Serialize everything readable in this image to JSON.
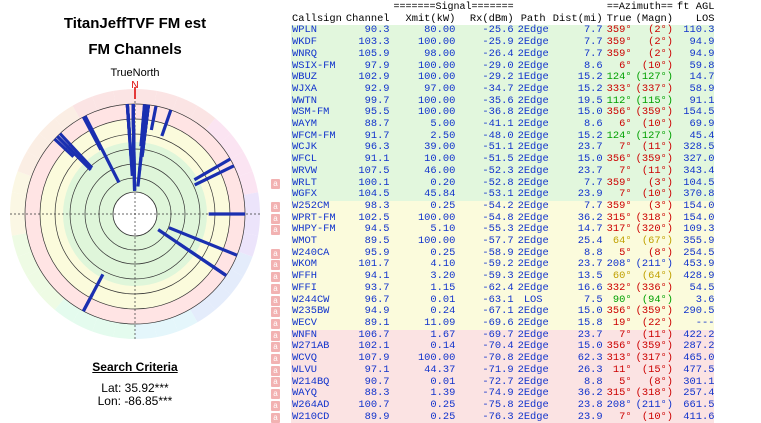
{
  "title_line1": "TitanJeffTVF FM est",
  "title_line2": "FM Channels",
  "true_north_label": "TrueNorth",
  "north_letter": "N",
  "search_criteria": {
    "heading": "Search Criteria",
    "lat": "Lat: 35.92***",
    "lon": "Lon: -86.85***"
  },
  "table_header": {
    "signal_group": "=======Signal=======",
    "azimuth_group": "==Azimuth==",
    "agl_group": "ft AGL",
    "columns": [
      "Callsign",
      "Channel",
      "Xmit(kW)",
      "Rx(dBm)",
      "Path",
      "Dist(mi)",
      "True",
      "(Magn)",
      "LOS"
    ]
  },
  "a_button_label": "a",
  "rows": [
    {
      "call": "WPLN",
      "ch": "90.3",
      "kw": "80.00",
      "rx": "-25.6",
      "path": "2Edge",
      "dist": "7.7",
      "true": "359°",
      "mag": "(2°)",
      "los": "110.3",
      "zone": "green",
      "az": "red",
      "a": false
    },
    {
      "call": "WKDF",
      "ch": "103.3",
      "kw": "100.00",
      "rx": "-25.9",
      "path": "2Edge",
      "dist": "7.7",
      "true": "359°",
      "mag": "(2°)",
      "los": "94.9",
      "zone": "green",
      "az": "red",
      "a": false
    },
    {
      "call": "WNRQ",
      "ch": "105.9",
      "kw": "98.00",
      "rx": "-26.4",
      "path": "2Edge",
      "dist": "7.7",
      "true": "359°",
      "mag": "(2°)",
      "los": "94.9",
      "zone": "green",
      "az": "red",
      "a": false
    },
    {
      "call": "WSIX-FM",
      "ch": "97.9",
      "kw": "100.00",
      "rx": "-29.0",
      "path": "2Edge",
      "dist": "8.6",
      "true": "6°",
      "mag": "(10°)",
      "los": "59.8",
      "zone": "green",
      "az": "red",
      "a": false
    },
    {
      "call": "WBUZ",
      "ch": "102.9",
      "kw": "100.00",
      "rx": "-29.2",
      "path": "1Edge",
      "dist": "15.2",
      "true": "124°",
      "mag": "(127°)",
      "los": "14.7",
      "zone": "green",
      "az": "grn",
      "a": false
    },
    {
      "call": "WJXA",
      "ch": "92.9",
      "kw": "97.00",
      "rx": "-34.7",
      "path": "2Edge",
      "dist": "15.2",
      "true": "333°",
      "mag": "(337°)",
      "los": "58.9",
      "zone": "green",
      "az": "red",
      "a": false
    },
    {
      "call": "WWTN",
      "ch": "99.7",
      "kw": "100.00",
      "rx": "-35.6",
      "path": "2Edge",
      "dist": "19.5",
      "true": "112°",
      "mag": "(115°)",
      "los": "91.1",
      "zone": "green",
      "az": "grn",
      "a": false
    },
    {
      "call": "WSM-FM",
      "ch": "95.5",
      "kw": "100.00",
      "rx": "-36.8",
      "path": "2Edge",
      "dist": "15.0",
      "true": "356°",
      "mag": "(359°)",
      "los": "154.5",
      "zone": "green",
      "az": "red",
      "a": false
    },
    {
      "call": "WAYM",
      "ch": "88.7",
      "kw": "5.00",
      "rx": "-41.1",
      "path": "2Edge",
      "dist": "8.6",
      "true": "6°",
      "mag": "(10°)",
      "los": "69.9",
      "zone": "green",
      "az": "red",
      "a": false
    },
    {
      "call": "WFCM-FM",
      "ch": "91.7",
      "kw": "2.50",
      "rx": "-48.0",
      "path": "2Edge",
      "dist": "15.2",
      "true": "124°",
      "mag": "(127°)",
      "los": "45.4",
      "zone": "green",
      "az": "grn",
      "a": false
    },
    {
      "call": "WCJK",
      "ch": "96.3",
      "kw": "39.00",
      "rx": "-51.1",
      "path": "2Edge",
      "dist": "23.7",
      "true": "7°",
      "mag": "(11°)",
      "los": "328.5",
      "zone": "green",
      "az": "red",
      "a": false
    },
    {
      "call": "WFCL",
      "ch": "91.1",
      "kw": "10.00",
      "rx": "-51.5",
      "path": "2Edge",
      "dist": "15.0",
      "true": "356°",
      "mag": "(359°)",
      "los": "327.0",
      "zone": "green",
      "az": "red",
      "a": false
    },
    {
      "call": "WRVW",
      "ch": "107.5",
      "kw": "46.00",
      "rx": "-52.3",
      "path": "2Edge",
      "dist": "23.7",
      "true": "7°",
      "mag": "(11°)",
      "los": "343.4",
      "zone": "green",
      "az": "red",
      "a": false
    },
    {
      "call": "WRLT",
      "ch": "100.1",
      "kw": "0.20",
      "rx": "-52.8",
      "path": "2Edge",
      "dist": "7.7",
      "true": "359°",
      "mag": "(3°)",
      "los": "104.5",
      "zone": "green",
      "az": "red",
      "a": true
    },
    {
      "call": "WGFX",
      "ch": "104.5",
      "kw": "45.84",
      "rx": "-53.1",
      "path": "2Edge",
      "dist": "23.9",
      "true": "7°",
      "mag": "(10°)",
      "los": "370.8",
      "zone": "green",
      "az": "red",
      "a": false
    },
    {
      "call": "W252CM",
      "ch": "98.3",
      "kw": "0.25",
      "rx": "-54.2",
      "path": "2Edge",
      "dist": "7.7",
      "true": "359°",
      "mag": "(3°)",
      "los": "154.0",
      "zone": "yellow",
      "az": "red",
      "a": true
    },
    {
      "call": "WPRT-FM",
      "ch": "102.5",
      "kw": "100.00",
      "rx": "-54.8",
      "path": "2Edge",
      "dist": "36.2",
      "true": "315°",
      "mag": "(318°)",
      "los": "154.0",
      "zone": "yellow",
      "az": "red",
      "a": true
    },
    {
      "call": "WHPY-FM",
      "ch": "94.5",
      "kw": "5.10",
      "rx": "-55.3",
      "path": "2Edge",
      "dist": "14.7",
      "true": "317°",
      "mag": "(320°)",
      "los": "109.3",
      "zone": "yellow",
      "az": "red",
      "a": true
    },
    {
      "call": "WMOT",
      "ch": "89.5",
      "kw": "100.00",
      "rx": "-57.7",
      "path": "2Edge",
      "dist": "25.4",
      "true": "64°",
      "mag": "(67°)",
      "los": "355.9",
      "zone": "yellow",
      "az": "yel",
      "a": false
    },
    {
      "call": "W240CA",
      "ch": "95.9",
      "kw": "0.25",
      "rx": "-58.9",
      "path": "2Edge",
      "dist": "8.8",
      "true": "5°",
      "mag": "(8°)",
      "los": "254.5",
      "zone": "yellow",
      "az": "red",
      "a": true
    },
    {
      "call": "WKOM",
      "ch": "101.7",
      "kw": "4.10",
      "rx": "-59.2",
      "path": "2Edge",
      "dist": "23.7",
      "true": "208°",
      "mag": "(211°)",
      "los": "453.9",
      "zone": "yellow",
      "az": "blu",
      "a": true
    },
    {
      "call": "WFFH",
      "ch": "94.1",
      "kw": "3.20",
      "rx": "-59.3",
      "path": "2Edge",
      "dist": "13.5",
      "true": "60°",
      "mag": "(64°)",
      "los": "428.9",
      "zone": "yellow",
      "az": "yel",
      "a": true
    },
    {
      "call": "WFFI",
      "ch": "93.7",
      "kw": "1.15",
      "rx": "-62.4",
      "path": "2Edge",
      "dist": "16.6",
      "true": "332°",
      "mag": "(336°)",
      "los": "54.5",
      "zone": "yellow",
      "az": "red",
      "a": true
    },
    {
      "call": "W244CW",
      "ch": "96.7",
      "kw": "0.01",
      "rx": "-63.1",
      "path": "LOS",
      "dist": "7.5",
      "true": "90°",
      "mag": "(94°)",
      "los": "3.6",
      "zone": "yellow",
      "az": "grn",
      "a": true
    },
    {
      "call": "W235BW",
      "ch": "94.9",
      "kw": "0.24",
      "rx": "-67.1",
      "path": "2Edge",
      "dist": "15.0",
      "true": "356°",
      "mag": "(359°)",
      "los": "290.5",
      "zone": "yellow",
      "az": "red",
      "a": true
    },
    {
      "call": "WECV",
      "ch": "89.1",
      "kw": "11.09",
      "rx": "-69.6",
      "path": "2Edge",
      "dist": "15.8",
      "true": "19°",
      "mag": "(22°)",
      "los": "---",
      "zone": "yellow",
      "az": "red",
      "a": true
    },
    {
      "call": "WNFN",
      "ch": "106.7",
      "kw": "1.67",
      "rx": "-69.7",
      "path": "2Edge",
      "dist": "23.7",
      "true": "7°",
      "mag": "(11°)",
      "los": "422.2",
      "zone": "pink",
      "az": "red",
      "a": true
    },
    {
      "call": "W271AB",
      "ch": "102.1",
      "kw": "0.14",
      "rx": "-70.4",
      "path": "2Edge",
      "dist": "15.0",
      "true": "356°",
      "mag": "(359°)",
      "los": "287.2",
      "zone": "pink",
      "az": "red",
      "a": true
    },
    {
      "call": "WCVQ",
      "ch": "107.9",
      "kw": "100.00",
      "rx": "-70.8",
      "path": "2Edge",
      "dist": "62.3",
      "true": "313°",
      "mag": "(317°)",
      "los": "465.0",
      "zone": "pink",
      "az": "red",
      "a": true
    },
    {
      "call": "WLVU",
      "ch": "97.1",
      "kw": "44.37",
      "rx": "-71.9",
      "path": "2Edge",
      "dist": "26.3",
      "true": "11°",
      "mag": "(15°)",
      "los": "477.5",
      "zone": "pink",
      "az": "red",
      "a": true
    },
    {
      "call": "W214BQ",
      "ch": "90.7",
      "kw": "0.01",
      "rx": "-72.7",
      "path": "2Edge",
      "dist": "8.8",
      "true": "5°",
      "mag": "(8°)",
      "los": "301.1",
      "zone": "pink",
      "az": "red",
      "a": true
    },
    {
      "call": "WAYQ",
      "ch": "88.3",
      "kw": "1.39",
      "rx": "-74.9",
      "path": "2Edge",
      "dist": "36.2",
      "true": "315°",
      "mag": "(318°)",
      "los": "257.4",
      "zone": "pink",
      "az": "red",
      "a": true
    },
    {
      "call": "W264AD",
      "ch": "100.7",
      "kw": "0.25",
      "rx": "-75.8",
      "path": "2Edge",
      "dist": "23.8",
      "true": "208°",
      "mag": "(211°)",
      "los": "661.5",
      "zone": "pink",
      "az": "blu",
      "a": true
    },
    {
      "call": "W210CD",
      "ch": "89.9",
      "kw": "0.25",
      "rx": "-76.3",
      "path": "2Edge",
      "dist": "23.9",
      "true": "7°",
      "mag": "(10°)",
      "los": "411.6",
      "zone": "pink",
      "az": "red",
      "a": true
    }
  ],
  "colors": {
    "green_row": "#e2f7dd",
    "yellow_row": "#fbfbdc",
    "pink_row": "#fbe3e3",
    "value_blue": "#1133cc",
    "bar_blue": "#1a2fb0"
  }
}
